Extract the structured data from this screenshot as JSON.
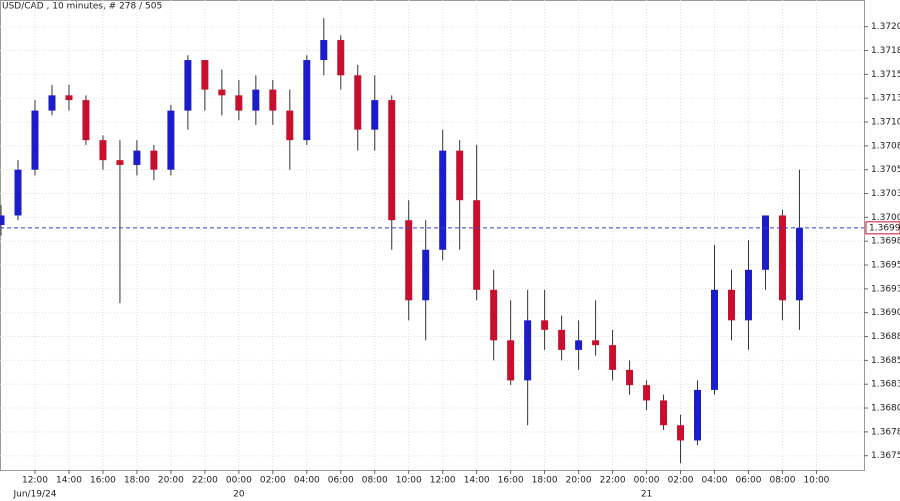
{
  "chart_data": {
    "type": "candlestick",
    "title": "USD/CAD , 10 minutes, # 278 / 505",
    "up_color": "#1c1cc8",
    "down_color": "#c8102e",
    "wick_color": "#333333",
    "grid": true,
    "x": [
      10,
      11,
      12,
      13,
      14,
      15,
      16,
      17,
      18,
      19,
      20,
      21,
      22,
      23,
      24,
      25,
      26,
      27,
      28,
      29,
      30,
      31,
      32,
      33,
      34,
      35,
      36,
      37,
      38,
      39,
      40,
      41,
      42,
      43,
      44,
      45,
      46,
      47,
      48,
      49,
      50,
      51,
      52,
      53,
      54,
      55,
      56,
      57
    ],
    "open": [
      1.36992,
      1.37002,
      1.3705,
      1.37112,
      1.37128,
      1.37123,
      1.37081,
      1.3706,
      1.37055,
      1.3707,
      1.3705,
      1.37112,
      1.37165,
      1.37134,
      1.37128,
      1.37112,
      1.37134,
      1.37112,
      1.37081,
      1.37165,
      1.37186,
      1.37149,
      1.37092,
      1.37123,
      1.36997,
      1.36913,
      1.36966,
      1.3707,
      1.37018,
      1.36924,
      1.36871,
      1.36829,
      1.36892,
      1.36882,
      1.36861,
      1.36871,
      1.36866,
      1.3684,
      1.36824,
      1.36808,
      1.36782,
      1.36766,
      1.36819,
      1.36924,
      1.36892,
      1.36945,
      1.37002,
      1.36913
    ],
    "high": [
      1.37013,
      1.3706,
      1.37123,
      1.37139,
      1.37139,
      1.37128,
      1.37086,
      1.37081,
      1.37081,
      1.37076,
      1.37118,
      1.3717,
      1.37165,
      1.37155,
      1.37144,
      1.37149,
      1.37144,
      1.37134,
      1.3717,
      1.37209,
      1.37191,
      1.3716,
      1.37149,
      1.37128,
      1.37018,
      1.36997,
      1.37092,
      1.37081,
      1.37076,
      1.36945,
      1.36913,
      1.36924,
      1.36924,
      1.36897,
      1.36892,
      1.36913,
      1.36882,
      1.3685,
      1.36829,
      1.36814,
      1.36793,
      1.36829,
      1.36971,
      1.36945,
      1.36976,
      1.37002,
      1.37008,
      1.3705
    ],
    "low": [
      1.36981,
      1.36997,
      1.37044,
      1.37107,
      1.37112,
      1.37076,
      1.3705,
      1.3691,
      1.37044,
      1.37039,
      1.37044,
      1.37092,
      1.37112,
      1.37107,
      1.37102,
      1.37097,
      1.37097,
      1.3705,
      1.37076,
      1.37149,
      1.37134,
      1.3707,
      1.3707,
      1.36966,
      1.36892,
      1.36871,
      1.36955,
      1.36966,
      1.36913,
      1.3685,
      1.36824,
      1.36782,
      1.36861,
      1.3685,
      1.3684,
      1.36855,
      1.36829,
      1.36814,
      1.36798,
      1.36777,
      1.36742,
      1.36761,
      1.36814,
      1.36871,
      1.36861,
      1.36924,
      1.36892,
      1.36882
    ],
    "close": [
      1.37002,
      1.3705,
      1.37112,
      1.37128,
      1.37123,
      1.37081,
      1.3706,
      1.37055,
      1.3707,
      1.3705,
      1.37112,
      1.37165,
      1.37134,
      1.37128,
      1.37112,
      1.37134,
      1.37112,
      1.37081,
      1.37165,
      1.37186,
      1.37149,
      1.37092,
      1.37123,
      1.36997,
      1.36913,
      1.36966,
      1.3707,
      1.37018,
      1.36924,
      1.36871,
      1.36829,
      1.36892,
      1.36882,
      1.36861,
      1.36871,
      1.36866,
      1.3684,
      1.36824,
      1.36808,
      1.36782,
      1.36766,
      1.36819,
      1.36924,
      1.36892,
      1.36945,
      1.37002,
      1.36913,
      1.36989
    ],
    "last_price": {
      "value": 1.36989,
      "label": "1.3699"
    },
    "xlim": [
      9.94,
      60.8
    ],
    "ylim": [
      1.36735,
      1.37228
    ],
    "yticks": [
      1.3675,
      {
        "value": 1.36775,
        "label": "1.3678"
      },
      {
        "value": 1.368,
        "label": "1.3680"
      },
      {
        "value": 1.36825,
        "label": "1.3683"
      },
      1.3685,
      {
        "value": 1.36875,
        "label": "1.3688"
      },
      {
        "value": 1.369,
        "label": "1.3690"
      },
      {
        "value": 1.36925,
        "label": "1.3693"
      },
      1.3695,
      {
        "value": 1.36975,
        "label": "1.3698"
      },
      {
        "value": 1.37,
        "label": "1.3700"
      },
      {
        "value": 1.37025,
        "label": "1.3703"
      },
      1.3705,
      {
        "value": 1.37075,
        "label": "1.3708"
      },
      {
        "value": 1.371,
        "label": "1.3710"
      },
      {
        "value": 1.37125,
        "label": "1.3713"
      },
      1.3715,
      {
        "value": 1.37175,
        "label": "1.3718"
      },
      {
        "value": 1.372,
        "label": "1.3720"
      }
    ],
    "xticks": [
      {
        "value": 12,
        "label": "12:00"
      },
      {
        "value": 14,
        "label": "14:00"
      },
      {
        "value": 16,
        "label": "16:00"
      },
      {
        "value": 18,
        "label": "18:00"
      },
      {
        "value": 20,
        "label": "20:00"
      },
      {
        "value": 22,
        "label": "22:00"
      },
      {
        "value": 24,
        "label": "00:00"
      },
      {
        "value": 26,
        "label": "02:00"
      },
      {
        "value": 28,
        "label": "04:00"
      },
      {
        "value": 30,
        "label": "06:00"
      },
      {
        "value": 32,
        "label": "08:00"
      },
      {
        "value": 34,
        "label": "10:00"
      },
      {
        "value": 36,
        "label": "12:00"
      },
      {
        "value": 38,
        "label": "14:00"
      },
      {
        "value": 40,
        "label": "16:00"
      },
      {
        "value": 42,
        "label": "18:00"
      },
      {
        "value": 44,
        "label": "20:00"
      },
      {
        "value": 46,
        "label": "22:00"
      },
      {
        "value": 48,
        "label": "00:00"
      },
      {
        "value": 50,
        "label": "02:00"
      },
      {
        "value": 52,
        "label": "04:00"
      },
      {
        "value": 54,
        "label": "06:00"
      },
      {
        "value": 56,
        "label": "08:00"
      },
      {
        "value": 58,
        "label": "10:00"
      }
    ],
    "date_labels": [
      {
        "value": 12,
        "label": "Jun/19/24"
      },
      {
        "value": 24,
        "label": "20"
      },
      {
        "value": 48,
        "label": "21"
      }
    ]
  }
}
